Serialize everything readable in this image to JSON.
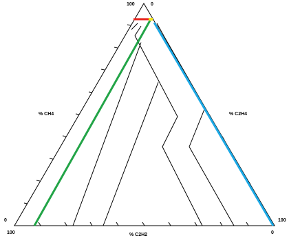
{
  "diagram": {
    "type": "duval-triangle",
    "labels": {
      "top_left_value": "100",
      "top_right_value": "0",
      "left_axis": "% CH4",
      "right_axis": "% C2H4",
      "bottom_axis": "% C2H2",
      "left_vertex_value": "0",
      "right_vertex_value": "100",
      "bottom_left_value": "100",
      "bottom_right_value": "0"
    },
    "colors": {
      "outline": "#000000",
      "green_band": "#22a447",
      "blue_band": "#1ca9e6",
      "red_segment": "#e8221b",
      "yellow_marker": "#f2e51c"
    }
  }
}
